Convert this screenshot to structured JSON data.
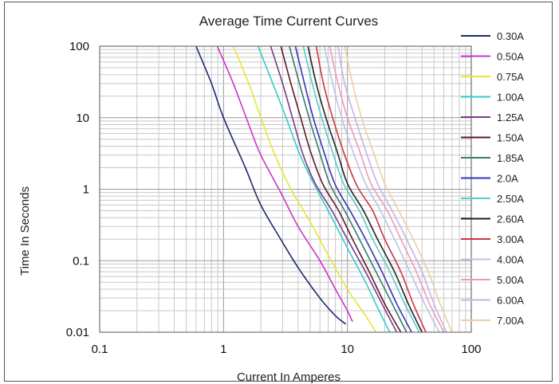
{
  "chart_data": {
    "type": "line",
    "title": "Average Time Current Curves",
    "xlabel": "Current In Amperes",
    "ylabel": "Time In Seconds",
    "x_scale": "log",
    "y_scale": "log",
    "xlim": [
      0.1,
      100
    ],
    "ylim": [
      0.01,
      100
    ],
    "x_ticks": [
      "0.1",
      "1",
      "10",
      "100"
    ],
    "y_ticks": [
      "100",
      "10",
      "1",
      "0.1",
      "0.01"
    ],
    "grid": true,
    "legend_position": "right",
    "series": [
      {
        "name": "0.30A",
        "color": "#1f2a6b",
        "x": [
          0.6,
          0.8,
          1.0,
          1.5,
          2.0,
          3.0,
          4.0,
          6.0,
          8.0,
          9.7
        ],
        "y": [
          100,
          30,
          10,
          2.0,
          0.6,
          0.18,
          0.08,
          0.03,
          0.017,
          0.013
        ]
      },
      {
        "name": "0.50A",
        "color": "#cc33cc",
        "x": [
          0.89,
          1.2,
          1.6,
          2.0,
          3.0,
          4.0,
          6.0,
          8.0,
          10.0,
          11.0
        ],
        "y": [
          100,
          30,
          8.0,
          3.0,
          0.8,
          0.3,
          0.1,
          0.04,
          0.02,
          0.014
        ]
      },
      {
        "name": "0.75A",
        "color": "#e6e633",
        "x": [
          1.2,
          1.6,
          2.0,
          2.6,
          3.5,
          5.0,
          7.0,
          10.0,
          14.0,
          17.0
        ],
        "y": [
          100,
          30,
          10,
          3.0,
          1.0,
          0.35,
          0.12,
          0.04,
          0.017,
          0.01
        ]
      },
      {
        "name": "1.00A",
        "color": "#33cccc",
        "x": [
          1.9,
          2.5,
          3.2,
          4.0,
          5.0,
          7.0,
          10.0,
          14.0,
          18.0,
          22.0
        ],
        "y": [
          100,
          30,
          10,
          3.5,
          1.5,
          0.5,
          0.15,
          0.05,
          0.02,
          0.01
        ]
      },
      {
        "name": "1.25A",
        "color": "#7a3a8a",
        "x": [
          2.4,
          3.0,
          3.6,
          4.4,
          5.5,
          7.5,
          10.0,
          14.0,
          19.0,
          25.0
        ],
        "y": [
          100,
          30,
          10,
          3.0,
          1.2,
          0.5,
          0.2,
          0.07,
          0.025,
          0.01
        ]
      },
      {
        "name": "1.50A",
        "color": "#5a1a2a",
        "x": [
          2.9,
          3.5,
          4.2,
          5.0,
          6.3,
          8.5,
          11.0,
          15.0,
          20.0,
          27.0
        ],
        "y": [
          100,
          30,
          10,
          3.5,
          1.2,
          0.5,
          0.2,
          0.07,
          0.025,
          0.01
        ]
      },
      {
        "name": "1.85A",
        "color": "#3a7a6a",
        "x": [
          3.4,
          4.1,
          4.9,
          5.9,
          7.2,
          9.5,
          12.5,
          17.0,
          23.0,
          30.0
        ],
        "y": [
          100,
          30,
          10,
          3.5,
          1.2,
          0.5,
          0.2,
          0.07,
          0.025,
          0.01
        ]
      },
      {
        "name": "2.0A",
        "color": "#3333bb",
        "x": [
          3.8,
          4.5,
          5.3,
          6.4,
          7.9,
          10.5,
          14.0,
          19.0,
          25.0,
          33.0
        ],
        "y": [
          100,
          30,
          10,
          3.5,
          1.2,
          0.5,
          0.2,
          0.07,
          0.025,
          0.01
        ]
      },
      {
        "name": "2.50A",
        "color": "#55cccc",
        "x": [
          4.4,
          5.2,
          6.2,
          7.5,
          9.3,
          12.5,
          16.0,
          22.0,
          29.0,
          38.0
        ],
        "y": [
          100,
          30,
          10,
          3.5,
          1.2,
          0.5,
          0.2,
          0.07,
          0.025,
          0.01
        ]
      },
      {
        "name": "2.60A",
        "color": "#222222",
        "x": [
          4.8,
          5.6,
          6.7,
          8.2,
          10.0,
          13.5,
          17.5,
          24.0,
          31.0,
          40.0
        ],
        "y": [
          100,
          30,
          10,
          3.5,
          1.2,
          0.5,
          0.2,
          0.07,
          0.025,
          0.01
        ]
      },
      {
        "name": "3.00A",
        "color": "#cc3344",
        "x": [
          5.6,
          6.4,
          7.6,
          9.5,
          12.0,
          16.0,
          20.0,
          27.0,
          34.0,
          43.0
        ],
        "y": [
          100,
          30,
          10,
          3.0,
          1.1,
          0.5,
          0.2,
          0.07,
          0.025,
          0.01
        ]
      },
      {
        "name": "4.00A",
        "color": "#b8c4e8",
        "x": [
          6.5,
          7.6,
          9.0,
          11.0,
          14.0,
          18.5,
          24.0,
          32.0,
          42.0,
          55.0
        ],
        "y": [
          100,
          30,
          10,
          3.5,
          1.2,
          0.5,
          0.2,
          0.07,
          0.025,
          0.01
        ]
      },
      {
        "name": "5.00A",
        "color": "#ee99bb",
        "x": [
          7.2,
          8.4,
          10.0,
          12.5,
          15.5,
          21.0,
          27.0,
          36.0,
          46.0,
          60.0
        ],
        "y": [
          100,
          30,
          10,
          3.5,
          1.2,
          0.5,
          0.2,
          0.07,
          0.025,
          0.01
        ]
      },
      {
        "name": "6.00A",
        "color": "#c4b4e4",
        "x": [
          8.4,
          9.5,
          11.5,
          14.0,
          17.5,
          23.0,
          30.0,
          40.0,
          50.0,
          63.0
        ],
        "y": [
          100,
          30,
          10,
          3.5,
          1.2,
          0.5,
          0.2,
          0.07,
          0.025,
          0.01
        ]
      },
      {
        "name": "7.00A",
        "color": "#eeccaa",
        "x": [
          9.5,
          11.0,
          13.0,
          16.0,
          20.0,
          26.0,
          34.0,
          45.0,
          56.0,
          70.0
        ],
        "y": [
          100,
          30,
          10,
          3.5,
          1.2,
          0.5,
          0.2,
          0.07,
          0.025,
          0.01
        ]
      }
    ]
  }
}
